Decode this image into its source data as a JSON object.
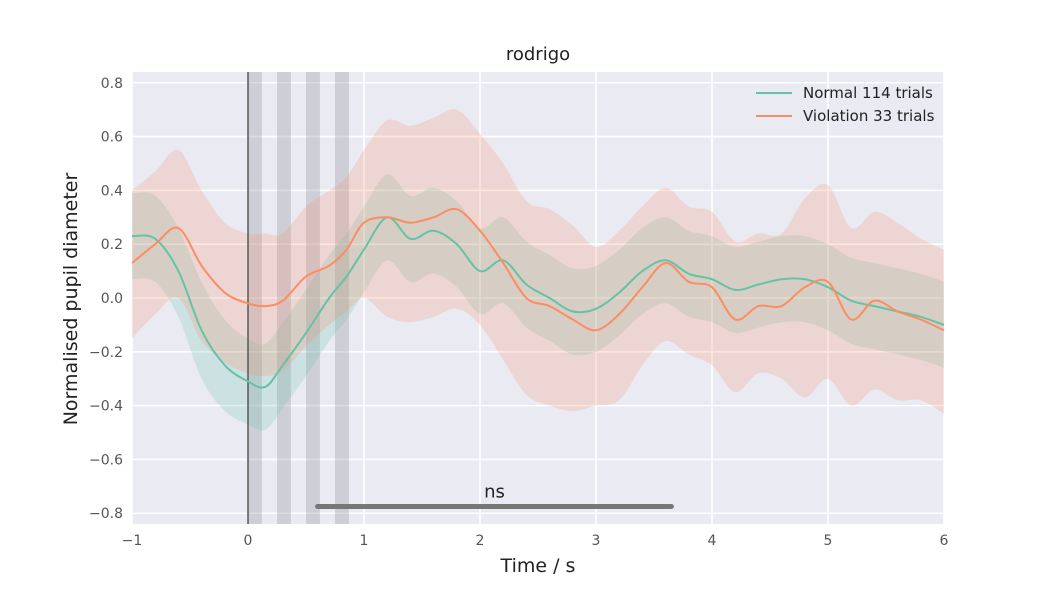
{
  "chart_data": {
    "type": "line",
    "title": "rodrigo",
    "xlabel": "Time / s",
    "ylabel": "Normalised pupil diameter",
    "xlim": [
      -1,
      6
    ],
    "ylim": [
      -0.84,
      0.84
    ],
    "xticks": [
      -1,
      0,
      1,
      2,
      3,
      4,
      5,
      6
    ],
    "xtick_labels": [
      "−1",
      "0",
      "1",
      "2",
      "3",
      "4",
      "5",
      "6"
    ],
    "yticks": [
      -0.8,
      -0.6,
      -0.4,
      -0.2,
      0.0,
      0.2,
      0.4,
      0.6,
      0.8
    ],
    "ytick_labels": [
      "−0.8",
      "−0.6",
      "−0.4",
      "−0.2",
      "0.0",
      "0.2",
      "0.4",
      "0.6",
      "0.8"
    ],
    "grid": true,
    "legend_position": "top-right",
    "x": [
      -1.0,
      -0.8,
      -0.6,
      -0.4,
      -0.2,
      0.0,
      0.15,
      0.3,
      0.5,
      0.7,
      0.85,
      1.0,
      1.2,
      1.4,
      1.6,
      1.8,
      2.0,
      2.2,
      2.4,
      2.6,
      2.8,
      3.0,
      3.2,
      3.4,
      3.6,
      3.8,
      4.0,
      4.2,
      4.4,
      4.6,
      4.8,
      5.0,
      5.2,
      5.4,
      5.6,
      5.8,
      6.0
    ],
    "series": [
      {
        "name": "Normal 114 trials",
        "color": "#66c2a5",
        "values": [
          0.23,
          0.22,
          0.1,
          -0.12,
          -0.25,
          -0.31,
          -0.33,
          -0.25,
          -0.13,
          0.0,
          0.08,
          0.18,
          0.3,
          0.22,
          0.25,
          0.2,
          0.1,
          0.14,
          0.05,
          0.0,
          -0.05,
          -0.04,
          0.02,
          0.1,
          0.14,
          0.09,
          0.07,
          0.03,
          0.05,
          0.07,
          0.07,
          0.04,
          -0.01,
          -0.03,
          -0.05,
          -0.07,
          -0.1
        ],
        "ci_lower": [
          0.07,
          0.06,
          -0.07,
          -0.3,
          -0.42,
          -0.47,
          -0.49,
          -0.41,
          -0.29,
          -0.16,
          -0.08,
          0.02,
          0.14,
          0.06,
          0.09,
          0.04,
          -0.06,
          -0.02,
          -0.11,
          -0.16,
          -0.21,
          -0.2,
          -0.14,
          -0.06,
          -0.02,
          -0.07,
          -0.09,
          -0.13,
          -0.11,
          -0.09,
          -0.09,
          -0.12,
          -0.17,
          -0.19,
          -0.21,
          -0.23,
          -0.26
        ],
        "ci_upper": [
          0.39,
          0.38,
          0.26,
          0.06,
          -0.08,
          -0.15,
          -0.17,
          -0.09,
          0.03,
          0.16,
          0.24,
          0.34,
          0.46,
          0.38,
          0.41,
          0.36,
          0.26,
          0.3,
          0.21,
          0.16,
          0.11,
          0.12,
          0.18,
          0.26,
          0.3,
          0.25,
          0.23,
          0.19,
          0.21,
          0.23,
          0.23,
          0.2,
          0.15,
          0.13,
          0.11,
          0.09,
          0.06
        ]
      },
      {
        "name": "Violation 33 trials",
        "color": "#fc8d62",
        "values": [
          0.13,
          0.2,
          0.26,
          0.12,
          0.02,
          -0.02,
          -0.03,
          -0.01,
          0.08,
          0.12,
          0.18,
          0.28,
          0.3,
          0.28,
          0.3,
          0.33,
          0.25,
          0.13,
          0.0,
          -0.03,
          -0.08,
          -0.12,
          -0.06,
          0.04,
          0.13,
          0.06,
          0.04,
          -0.08,
          -0.03,
          -0.03,
          0.04,
          0.06,
          -0.08,
          -0.01,
          -0.05,
          -0.08,
          -0.12
        ],
        "ci_lower": [
          -0.15,
          -0.06,
          0.0,
          -0.16,
          -0.24,
          -0.28,
          -0.29,
          -0.27,
          -0.18,
          -0.1,
          -0.05,
          0.0,
          -0.07,
          -0.09,
          -0.07,
          -0.04,
          -0.1,
          -0.23,
          -0.36,
          -0.4,
          -0.42,
          -0.4,
          -0.38,
          -0.25,
          -0.16,
          -0.21,
          -0.25,
          -0.35,
          -0.28,
          -0.3,
          -0.37,
          -0.3,
          -0.4,
          -0.34,
          -0.38,
          -0.38,
          -0.43
        ],
        "ci_upper": [
          0.4,
          0.47,
          0.55,
          0.4,
          0.28,
          0.24,
          0.24,
          0.24,
          0.34,
          0.4,
          0.45,
          0.55,
          0.66,
          0.64,
          0.67,
          0.7,
          0.61,
          0.5,
          0.36,
          0.33,
          0.27,
          0.19,
          0.25,
          0.34,
          0.41,
          0.34,
          0.32,
          0.21,
          0.24,
          0.24,
          0.37,
          0.42,
          0.26,
          0.32,
          0.28,
          0.22,
          0.18
        ]
      }
    ],
    "shaded_spans": [
      [
        0.0,
        0.12
      ],
      [
        0.25,
        0.37
      ],
      [
        0.5,
        0.62
      ],
      [
        0.75,
        0.87
      ]
    ],
    "vline_x": 0.0,
    "annotation": {
      "text": "ns",
      "x_start": 0.6,
      "x_end": 3.65,
      "y": -0.775,
      "bar_color": "#777777"
    }
  }
}
